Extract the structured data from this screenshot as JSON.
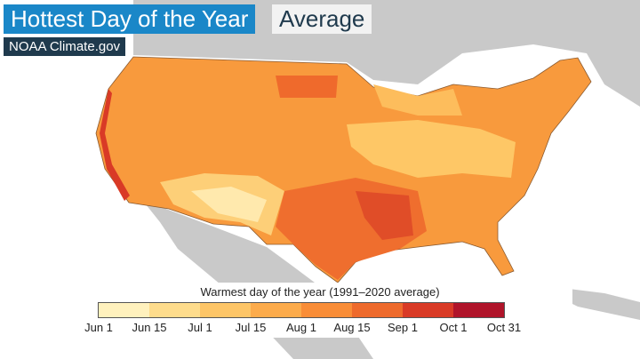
{
  "header": {
    "title": "Hottest Day of the Year",
    "tag": "Average",
    "source": "NOAA Climate.gov"
  },
  "legend": {
    "title": "Warmest day of the year (1991–2020 average)",
    "labels": [
      "Jun 1",
      "Jun 15",
      "Jul 1",
      "Jul 15",
      "Aug 1",
      "Aug 15",
      "Sep 1",
      "Oct 1",
      "Oct 31"
    ],
    "colors": [
      "#fff1bd",
      "#fedc8c",
      "#fdc567",
      "#fcab4b",
      "#f98d37",
      "#ee6a2c",
      "#d93a26",
      "#b0142a"
    ]
  }
}
